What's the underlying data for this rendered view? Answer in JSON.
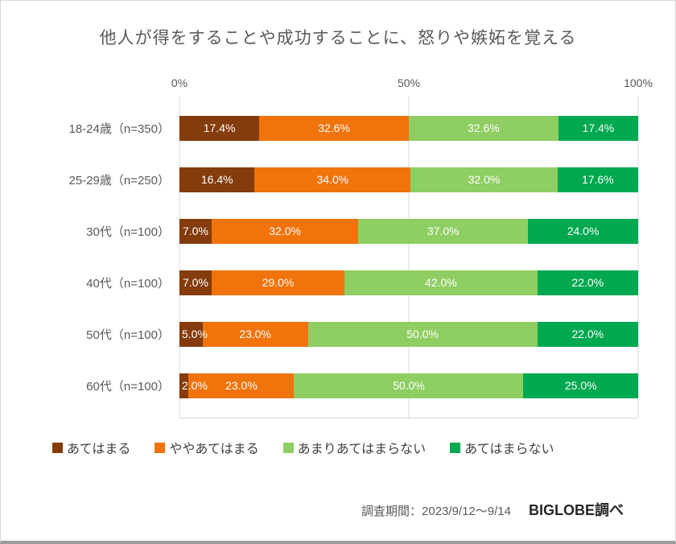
{
  "title": "他人が得をすることや成功することに、怒りや嫉妬を覚える",
  "chart_data": {
    "type": "bar",
    "variant": "horizontal-stacked",
    "xlim": [
      0,
      100
    ],
    "grid": true,
    "legend_position": "bottom",
    "value_label_format": "one-decimal-percent",
    "ticks": [
      {
        "label": "0%",
        "value": 0
      },
      {
        "label": "50%",
        "value": 50
      },
      {
        "label": "100%",
        "value": 100
      }
    ],
    "categories": [
      "18-24歳（n=350）",
      "25-29歳（n=250）",
      "30代（n=100）",
      "40代（n=100）",
      "50代（n=100）",
      "60代（n=100）"
    ],
    "series": [
      {
        "name": "あてはまる",
        "color": "#843C0C",
        "values": [
          17.4,
          16.4,
          7.0,
          7.0,
          5.0,
          2.0
        ]
      },
      {
        "name": "ややあてはまる",
        "color": "#F0730C",
        "values": [
          32.6,
          34.0,
          32.0,
          29.0,
          23.0,
          23.0
        ]
      },
      {
        "name": "あまりあてはまらない",
        "color": "#8FCE63",
        "values": [
          32.6,
          32.0,
          37.0,
          42.0,
          50.0,
          50.0
        ]
      },
      {
        "name": "あてはまらない",
        "color": "#00A84F",
        "values": [
          17.4,
          17.6,
          24.0,
          22.0,
          22.0,
          25.0
        ]
      }
    ]
  },
  "footer": {
    "survey_period": "調査期間：2023/9/12～9/14",
    "source": "BIGLOBE調べ"
  }
}
